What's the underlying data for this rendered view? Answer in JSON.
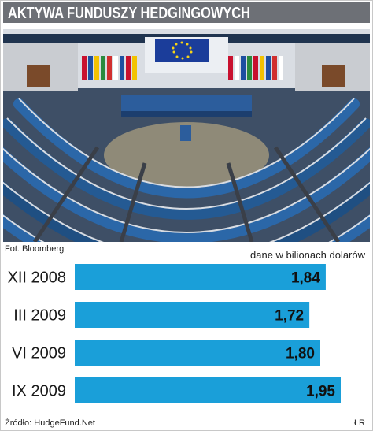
{
  "header": {
    "title": "AKTYWA FUNDUSZY HEDGINGOWYCH"
  },
  "photo": {
    "credit": "Fot. Bloomberg"
  },
  "units": "dane w bilionach dolarów",
  "footer": {
    "source": "Źródło: HudgeFund.Net",
    "author": "ŁR"
  },
  "colors": {
    "bar": "#1a9fd9",
    "title_bg": "#6d7076"
  },
  "chart_data": {
    "type": "bar",
    "orientation": "horizontal",
    "categories": [
      "XII 2008",
      "III 2009",
      "VI 2009",
      "IX 2009"
    ],
    "values": [
      1.84,
      1.72,
      1.8,
      1.95
    ],
    "value_labels": [
      "1,84",
      "1,72",
      "1,80",
      "1,95"
    ],
    "title": "AKTYWA FUNDUSZY HEDGINGOWYCH",
    "unit_label": "dane w bilionach dolarów"
  }
}
